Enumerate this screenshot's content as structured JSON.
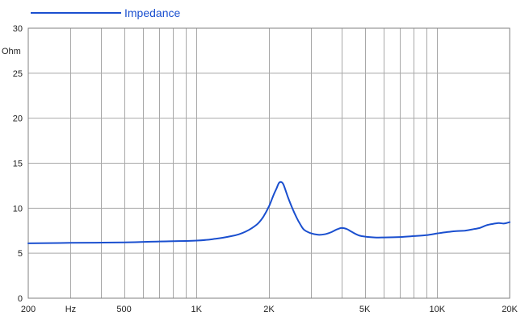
{
  "chart_data": {
    "type": "line",
    "x_scale": "log",
    "xlim": [
      200,
      20000
    ],
    "ylim": [
      0,
      30
    ],
    "ylabel": "Ohm",
    "grid": true,
    "legend_position": "top-left",
    "x_ticks": [
      {
        "value": 200,
        "label": "200"
      },
      {
        "value": 300,
        "label": "Hz"
      },
      {
        "value": 500,
        "label": "500"
      },
      {
        "value": 1000,
        "label": "1K"
      },
      {
        "value": 2000,
        "label": "2K"
      },
      {
        "value": 5000,
        "label": "5K"
      },
      {
        "value": 10000,
        "label": "10K"
      },
      {
        "value": 20000,
        "label": "20K"
      }
    ],
    "x_gridlines": [
      300,
      400,
      500,
      600,
      700,
      800,
      900,
      1000,
      2000,
      3000,
      4000,
      5000,
      6000,
      7000,
      8000,
      9000,
      10000,
      20000
    ],
    "y_ticks": [
      0,
      5,
      10,
      15,
      20,
      25,
      30
    ],
    "series": [
      {
        "name": "Impedance",
        "color": "#1a4fcf",
        "x": [
          200,
          300,
          500,
          700,
          1000,
          1200,
          1400,
          1500,
          1600,
          1700,
          1800,
          1900,
          2000,
          2050,
          2100,
          2150,
          2200,
          2250,
          2300,
          2400,
          2500,
          2600,
          2700,
          2800,
          3000,
          3200,
          3400,
          3600,
          3800,
          4000,
          4200,
          4400,
          4700,
          5000,
          5500,
          6000,
          7000,
          8000,
          9000,
          10000,
          11000,
          12000,
          13000,
          14000,
          15000,
          16000,
          17000,
          18000,
          19000,
          20000
        ],
        "y": [
          6.1,
          6.15,
          6.2,
          6.3,
          6.4,
          6.6,
          6.9,
          7.1,
          7.4,
          7.8,
          8.3,
          9.1,
          10.2,
          10.9,
          11.6,
          12.2,
          12.8,
          12.9,
          12.6,
          11.2,
          10.0,
          9.0,
          8.2,
          7.6,
          7.2,
          7.05,
          7.1,
          7.3,
          7.6,
          7.8,
          7.7,
          7.4,
          7.0,
          6.85,
          6.75,
          6.75,
          6.8,
          6.9,
          7.0,
          7.2,
          7.35,
          7.45,
          7.5,
          7.65,
          7.8,
          8.1,
          8.25,
          8.35,
          8.3,
          8.45
        ]
      }
    ]
  }
}
